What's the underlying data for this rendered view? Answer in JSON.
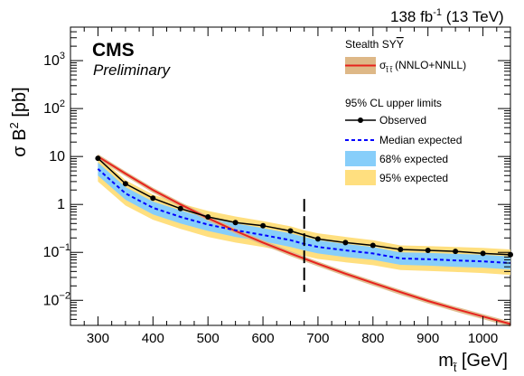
{
  "header": {
    "lumi_label": "138 fb",
    "lumi_exponent": "-1",
    "energy_label": " (13 TeV)",
    "experiment": "CMS",
    "status": "Preliminary"
  },
  "legend": {
    "model_title": "Stealth SY",
    "model_title_bar": "Y",
    "theory_sigma": "σ",
    "theory_subscript": "t̃ t̃",
    "theory_label": "(NNLO+NNLL)",
    "limits_title": "95% CL upper limits",
    "observed": "Observed",
    "median": "Median expected",
    "band68": "68% expected",
    "band95": "95% expected"
  },
  "axes": {
    "ylabel_main": "σ B",
    "ylabel_exp": "2",
    "ylabel_unit": " [pb]",
    "xlabel_main": "m",
    "xlabel_sub": "t̃",
    "xlabel_unit": " [GeV]",
    "xticks": [
      "300",
      "400",
      "500",
      "600",
      "700",
      "800",
      "900",
      "1000"
    ],
    "ytick_labels": [
      {
        "base": "10",
        "exp": "3"
      },
      {
        "base": "10",
        "exp": "2"
      },
      {
        "base": "10",
        "exp": ""
      },
      {
        "base": "1",
        "exp": ""
      },
      {
        "base": "10",
        "exp": "−1"
      },
      {
        "base": "10",
        "exp": "−2"
      }
    ]
  },
  "colors": {
    "observed": "#000000",
    "median": "#0000ff",
    "band68": "#87cefa",
    "band95": "#ffdf7f",
    "theory_line": "#e6231e",
    "theory_band": "#deb887",
    "exclusion_marker": "#000000"
  },
  "chart_data": {
    "type": "line",
    "x_scale": "linear",
    "y_scale": "log",
    "xlim": [
      250,
      1050
    ],
    "ylim": [
      0.003,
      5000
    ],
    "grid": false,
    "legend_position": "top-right",
    "x": [
      300,
      350,
      400,
      450,
      500,
      550,
      600,
      650,
      675,
      700,
      750,
      800,
      850,
      900,
      950,
      1000,
      1050
    ],
    "series": [
      {
        "name": "Observed",
        "style": "line+markers",
        "values": [
          9.2,
          2.7,
          1.35,
          0.82,
          0.55,
          0.42,
          0.36,
          0.28,
          0.23,
          0.19,
          0.16,
          0.14,
          0.115,
          0.11,
          0.105,
          0.095,
          0.09
        ]
      },
      {
        "name": "Median expected",
        "style": "dashed",
        "values": [
          5.5,
          1.7,
          0.85,
          0.55,
          0.38,
          0.29,
          0.23,
          0.18,
          0.15,
          0.13,
          0.11,
          0.095,
          0.075,
          0.072,
          0.068,
          0.065,
          0.06
        ]
      },
      {
        "name": "68% expected",
        "style": "band",
        "low": [
          4.0,
          1.25,
          0.62,
          0.4,
          0.28,
          0.21,
          0.17,
          0.13,
          0.11,
          0.095,
          0.08,
          0.07,
          0.055,
          0.053,
          0.05,
          0.048,
          0.044
        ],
        "high": [
          7.5,
          2.3,
          1.15,
          0.75,
          0.52,
          0.4,
          0.32,
          0.25,
          0.21,
          0.18,
          0.15,
          0.13,
          0.1,
          0.098,
          0.093,
          0.089,
          0.082
        ]
      },
      {
        "name": "95% expected",
        "style": "band",
        "low": [
          3.0,
          0.95,
          0.48,
          0.31,
          0.21,
          0.16,
          0.13,
          0.1,
          0.085,
          0.073,
          0.062,
          0.054,
          0.043,
          0.041,
          0.039,
          0.037,
          0.034
        ]
      },
      {
        "name": "σ t̃t̃ (NNLO+NNLL)",
        "style": "line+band",
        "x": [
          300,
          350,
          400,
          450,
          500,
          550,
          600,
          650,
          700,
          750,
          800,
          850,
          900,
          950,
          1000,
          1050
        ],
        "values": [
          10.0,
          4.4,
          2.0,
          1.0,
          0.52,
          0.28,
          0.16,
          0.095,
          0.058,
          0.036,
          0.023,
          0.0148,
          0.0097,
          0.0066,
          0.0046,
          0.0032
        ]
      }
    ],
    "band95_high": [
      10.5,
      3.2,
      1.6,
      1.05,
      0.73,
      0.56,
      0.45,
      0.35,
      0.29,
      0.25,
      0.21,
      0.18,
      0.14,
      0.135,
      0.13,
      0.124,
      0.115
    ],
    "exclusion_mass": 675,
    "exclusion_y_range": [
      0.015,
      1.3
    ]
  }
}
